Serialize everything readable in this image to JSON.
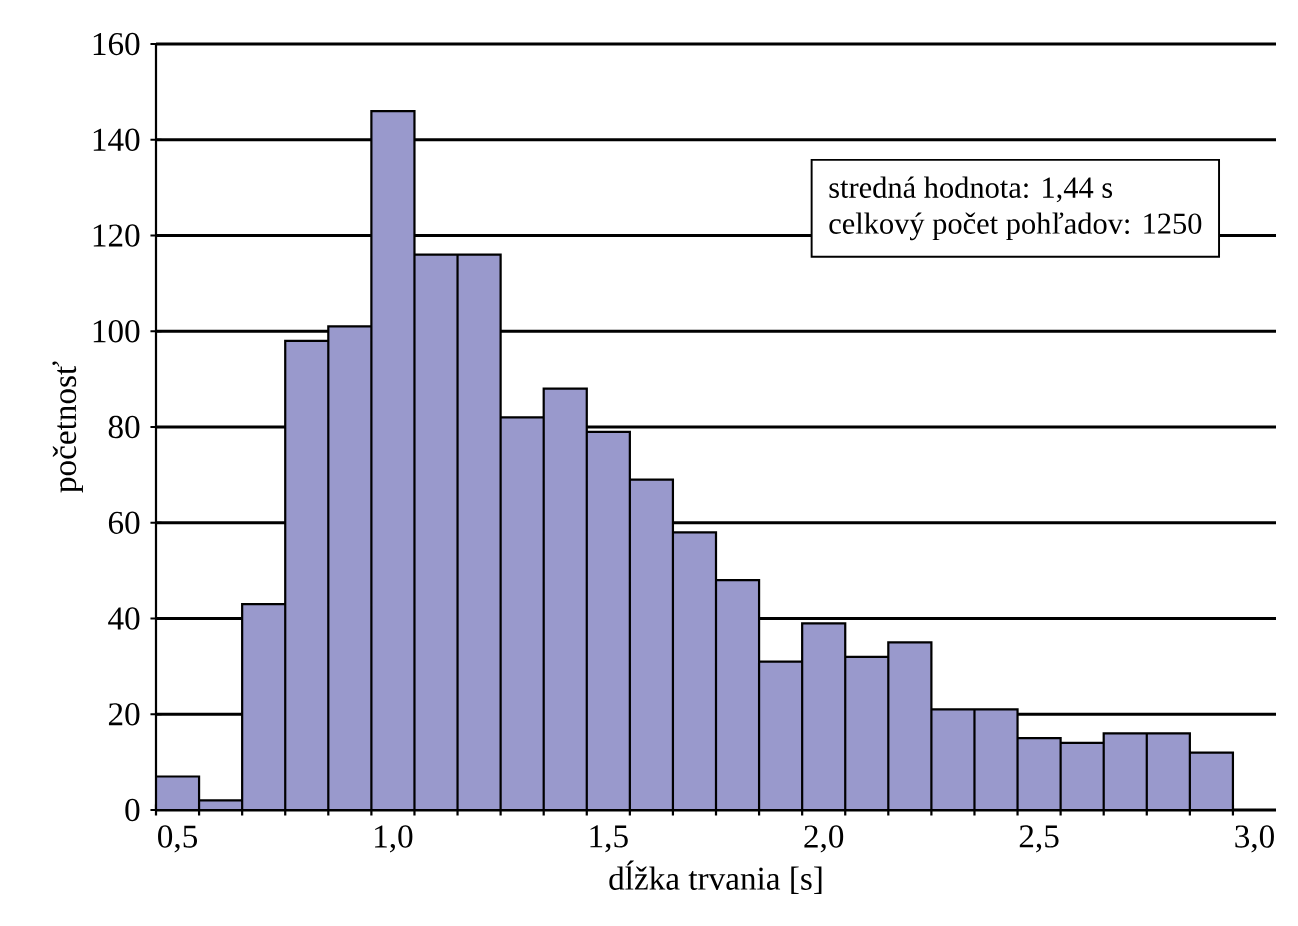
{
  "chart_data": {
    "type": "histogram",
    "xlabel": "dĺžka trvania [s]",
    "ylabel": "početnosť",
    "bins": [
      0.45,
      0.55,
      0.65,
      0.75,
      0.85,
      0.95,
      1.05,
      1.15,
      1.25,
      1.35,
      1.45,
      1.55,
      1.65,
      1.75,
      1.85,
      1.95,
      2.05,
      2.15,
      2.25,
      2.35,
      2.45,
      2.55,
      2.65,
      2.75,
      2.85,
      2.95
    ],
    "values": [
      7,
      2,
      43,
      98,
      101,
      146,
      116,
      116,
      82,
      88,
      79,
      69,
      58,
      48,
      31,
      39,
      32,
      35,
      21,
      21,
      15,
      14,
      16,
      16,
      12
    ],
    "color": "#9999cc",
    "xlim": [
      0.45,
      3.05
    ],
    "xticks": [
      {
        "value": 0.5,
        "label": "0,5"
      },
      {
        "value": 1.0,
        "label": "1,0"
      },
      {
        "value": 1.5,
        "label": "1,5"
      },
      {
        "value": 2.0,
        "label": "2,0"
      },
      {
        "value": 2.5,
        "label": "2,5"
      },
      {
        "value": 3.0,
        "label": "3,0"
      }
    ],
    "ylim": [
      0,
      160
    ],
    "yticks": [
      0,
      20,
      40,
      60,
      80,
      100,
      120,
      140,
      160
    ],
    "grid": "y",
    "annotations": [
      "stredná hodnota: 1,44 s",
      "celkový počet pohľadov: 1250"
    ]
  }
}
